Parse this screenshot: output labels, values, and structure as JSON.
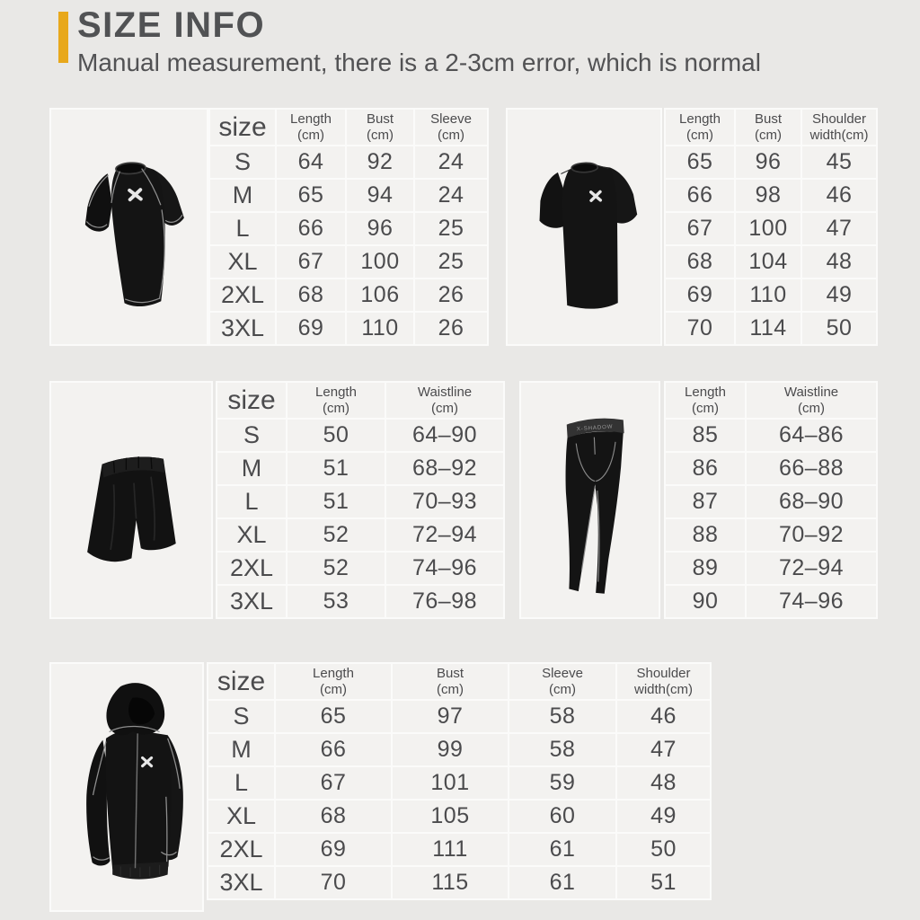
{
  "header": {
    "title": "SIZE INFO",
    "subtitle": "Manual measurement, there is a 2-3cm error, which is normal"
  },
  "sizes": [
    "S",
    "M",
    "L",
    "XL",
    "2XL",
    "3XL"
  ],
  "tables": [
    {
      "id": "compression-shirt",
      "corner_label": "size",
      "columns": [
        [
          "Length",
          "(cm)"
        ],
        [
          "Bust",
          "(cm)"
        ],
        [
          "Sleeve",
          "(cm)"
        ]
      ],
      "rows": [
        [
          "64",
          "92",
          "24"
        ],
        [
          "65",
          "94",
          "24"
        ],
        [
          "66",
          "96",
          "25"
        ],
        [
          "67",
          "100",
          "25"
        ],
        [
          "68",
          "106",
          "26"
        ],
        [
          "69",
          "110",
          "26"
        ]
      ]
    },
    {
      "id": "loose-tshirt",
      "columns": [
        [
          "Length",
          "(cm)"
        ],
        [
          "Bust",
          "(cm)"
        ],
        [
          "Shoulder",
          "width(cm)"
        ]
      ],
      "rows": [
        [
          "65",
          "96",
          "45"
        ],
        [
          "66",
          "98",
          "46"
        ],
        [
          "67",
          "100",
          "47"
        ],
        [
          "68",
          "104",
          "48"
        ],
        [
          "69",
          "110",
          "49"
        ],
        [
          "70",
          "114",
          "50"
        ]
      ]
    },
    {
      "id": "shorts",
      "corner_label": "size",
      "columns": [
        [
          "Length",
          "(cm)"
        ],
        [
          "Waistline",
          "(cm)"
        ]
      ],
      "rows": [
        [
          "50",
          "64–90"
        ],
        [
          "51",
          "68–92"
        ],
        [
          "51",
          "70–93"
        ],
        [
          "52",
          "72–94"
        ],
        [
          "52",
          "74–96"
        ],
        [
          "53",
          "76–98"
        ]
      ]
    },
    {
      "id": "leggings",
      "columns": [
        [
          "Length",
          "(cm)"
        ],
        [
          "Waistline",
          "(cm)"
        ]
      ],
      "rows": [
        [
          "85",
          "64–86"
        ],
        [
          "86",
          "66–88"
        ],
        [
          "87",
          "68–90"
        ],
        [
          "88",
          "70–92"
        ],
        [
          "89",
          "72–94"
        ],
        [
          "90",
          "74–96"
        ]
      ]
    },
    {
      "id": "hoodie",
      "corner_label": "size",
      "columns": [
        [
          "Length",
          "(cm)"
        ],
        [
          "Bust",
          "(cm)"
        ],
        [
          "Sleeve",
          "(cm)"
        ],
        [
          "Shoulder",
          "width(cm)"
        ]
      ],
      "rows": [
        [
          "65",
          "97",
          "58",
          "46"
        ],
        [
          "66",
          "99",
          "58",
          "47"
        ],
        [
          "67",
          "101",
          "59",
          "48"
        ],
        [
          "68",
          "105",
          "60",
          "49"
        ],
        [
          "69",
          "111",
          "61",
          "50"
        ],
        [
          "70",
          "115",
          "61",
          "51"
        ]
      ]
    }
  ],
  "garments": {
    "leggings_waistband_text": "X-SHADOW"
  },
  "colors": {
    "accent_yellow": "#e8a81c",
    "page_background": "#e9e8e6",
    "cell_background": "#f3f2f0",
    "text_gray": "#4b4b4d"
  }
}
